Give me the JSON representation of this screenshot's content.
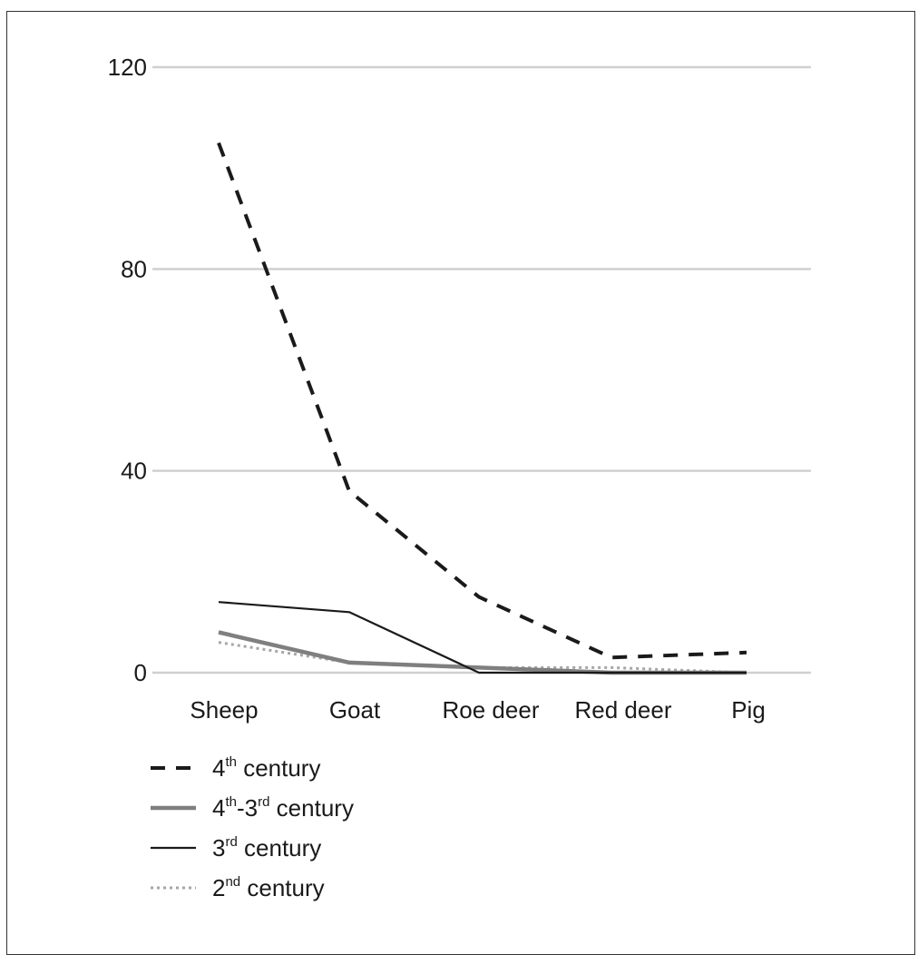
{
  "chart_data": {
    "type": "line",
    "title": "",
    "xlabel": "",
    "ylabel": "",
    "ylim": [
      0,
      120
    ],
    "yticks": [
      0,
      40,
      80,
      120
    ],
    "grid": true,
    "legend_position": "bottom-left",
    "categories": [
      "Sheep",
      "Goat",
      "Roe deer",
      "Red deer",
      "Pig"
    ],
    "series": [
      {
        "name": "4th century",
        "name_base": "4",
        "name_sup": "th",
        "name_rest": " century",
        "style": "dashed",
        "color": "#1a1a1a",
        "values": [
          105,
          36,
          15,
          3,
          4
        ]
      },
      {
        "name": "4th-3rd century",
        "name_base": "4",
        "name_sup": "th",
        "name_mid": "-3",
        "name_sup2": "rd",
        "name_rest": " century",
        "style": "thick",
        "color": "#7f7f7f",
        "values": [
          8,
          2,
          1,
          0,
          0
        ]
      },
      {
        "name": "3rd century",
        "name_base": "3",
        "name_sup": "rd",
        "name_rest": " century",
        "style": "solid",
        "color": "#1a1a1a",
        "values": [
          14,
          12,
          0,
          0,
          0
        ]
      },
      {
        "name": "2nd century",
        "name_base": "2",
        "name_sup": "nd",
        "name_rest": " century",
        "style": "dotted",
        "color": "#a6a6a6",
        "values": [
          6,
          2,
          1,
          1,
          0
        ]
      }
    ]
  }
}
